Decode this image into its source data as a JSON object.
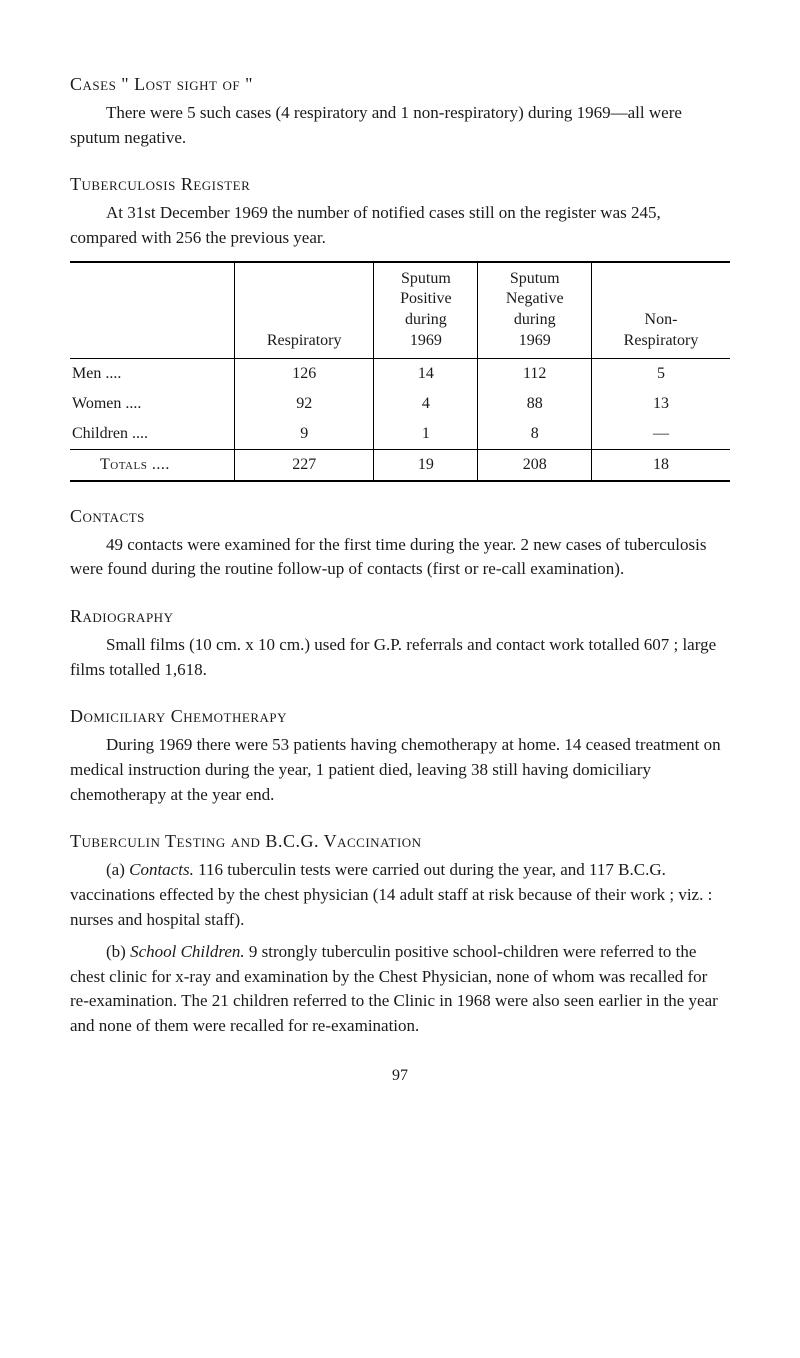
{
  "sections": {
    "lost_sight": {
      "title": "Cases \" Lost sight of \"",
      "body": "There were 5 such cases (4 respiratory and 1 non-respiratory) during 1969—all were sputum negative."
    },
    "register": {
      "title": "Tuberculosis Register",
      "body": "At 31st December 1969 the number of notified cases still on the register was 245, compared with 256 the previous year."
    },
    "table": {
      "headers": {
        "col1": "Respiratory",
        "col2": "Sputum\nPositive\nduring\n1969",
        "col3": "Sputum\nNegative\nduring\n1969",
        "col4": "Non-\nRespiratory"
      },
      "rows": [
        {
          "label": "Men      ....",
          "c1": "126",
          "c2": "14",
          "c3": "112",
          "c4": "5"
        },
        {
          "label": "Women     ....",
          "c1": "92",
          "c2": "4",
          "c3": "88",
          "c4": "13"
        },
        {
          "label": "Children    ....",
          "c1": "9",
          "c2": "1",
          "c3": "8",
          "c4": "—"
        }
      ],
      "totals": {
        "label": "Totals ....",
        "c1": "227",
        "c2": "19",
        "c3": "208",
        "c4": "18"
      }
    },
    "contacts": {
      "title": "Contacts",
      "body": "49 contacts were examined for the first time during the year. 2 new cases of tuberculosis were found during the routine follow-up of contacts (first or re-call examination)."
    },
    "radiography": {
      "title": "Radiography",
      "body": "Small films (10 cm. x 10 cm.) used for G.P. referrals and contact work totalled 607 ; large films totalled 1,618."
    },
    "domiciliary": {
      "title": "Domiciliary Chemotherapy",
      "body": "During 1969 there were 53 patients having chemotherapy at home. 14 ceased treatment on medical instruction during the year, 1 patient died, leaving 38 still having domiciliary chemotherapy at the year end."
    },
    "tuberculin": {
      "title": "Tuberculin Testing and B.C.G. Vaccination",
      "para_a_label": "(a)",
      "para_a_italic": "Contacts.",
      "para_a_body": "116 tuberculin tests were carried out during the year, and 117 B.C.G. vaccinations effected by the chest physician (14 adult staff at risk because of their work ; viz. : nurses and hospital staff).",
      "para_b_label": "(b)",
      "para_b_italic": "School Children.",
      "para_b_body": "9 strongly tuberculin positive school-children were referred to the chest clinic for x-ray and examination by the Chest Physician, none of whom was recalled for re-examination. The 21 children referred to the Clinic in 1968 were also seen earlier in the year and none of them were recalled for re-examination."
    }
  },
  "page_number": "97"
}
